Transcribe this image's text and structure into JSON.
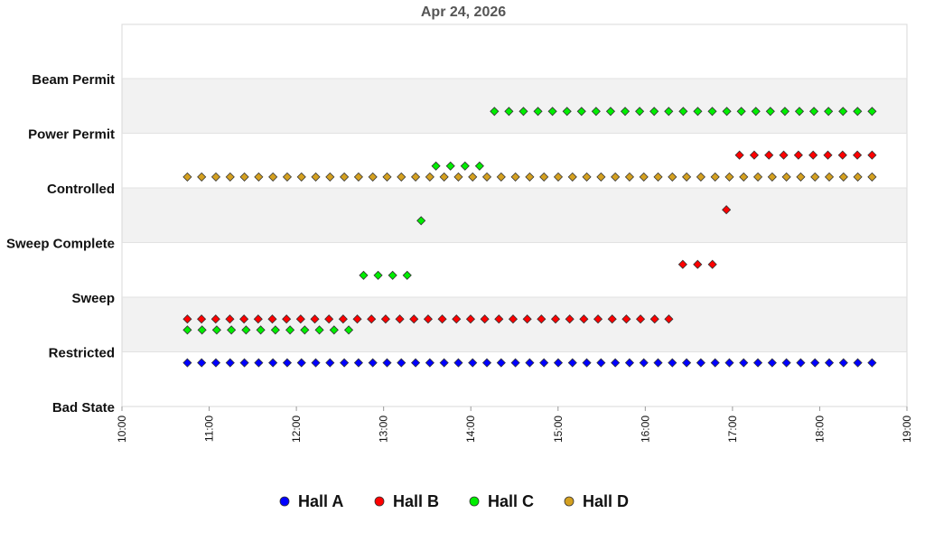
{
  "chart_data": {
    "type": "scatter",
    "title": "Apr 24, 2026",
    "xlabel": "",
    "ylabel": "",
    "x_ticks": [
      "10:00",
      "11:00",
      "12:00",
      "13:00",
      "14:00",
      "15:00",
      "16:00",
      "17:00",
      "18:00",
      "19:00"
    ],
    "xlim": [
      10.0,
      19.0
    ],
    "y_categories": [
      "Bad State",
      "Restricted",
      "Sweep",
      "Sweep Complete",
      "Controlled",
      "Power Permit",
      "Beam Permit"
    ],
    "ylim": [
      0,
      6.3
    ],
    "grid": "alternating horizontal bands",
    "legend_position": "bottom",
    "series": [
      {
        "name": "Hall A",
        "color": "#0000ff",
        "segments": [
          {
            "state_level": 0.8,
            "start": 10.75,
            "end": 18.6,
            "count": 49
          }
        ]
      },
      {
        "name": "Hall B",
        "color": "#ff0000",
        "segments": [
          {
            "state_level": 1.6,
            "start": 10.75,
            "end": 16.27,
            "count": 35
          },
          {
            "state_level": 2.6,
            "start": 16.43,
            "end": 16.77,
            "count": 3
          },
          {
            "state_level": 3.6,
            "start": 16.93,
            "end": 16.93,
            "count": 1
          },
          {
            "state_level": 4.6,
            "start": 17.08,
            "end": 18.6,
            "count": 10
          }
        ]
      },
      {
        "name": "Hall C",
        "color": "#00ee00",
        "segments": [
          {
            "state_level": 1.4,
            "start": 10.75,
            "end": 12.6,
            "count": 12
          },
          {
            "state_level": 2.4,
            "start": 12.77,
            "end": 13.27,
            "count": 4
          },
          {
            "state_level": 3.4,
            "start": 13.43,
            "end": 13.43,
            "count": 1
          },
          {
            "state_level": 4.4,
            "start": 13.6,
            "end": 14.1,
            "count": 4
          },
          {
            "state_level": 5.4,
            "start": 14.27,
            "end": 18.6,
            "count": 27
          }
        ]
      },
      {
        "name": "Hall D",
        "color": "#d4a020",
        "segments": [
          {
            "state_level": 4.2,
            "start": 10.75,
            "end": 18.6,
            "count": 49
          }
        ]
      }
    ]
  }
}
